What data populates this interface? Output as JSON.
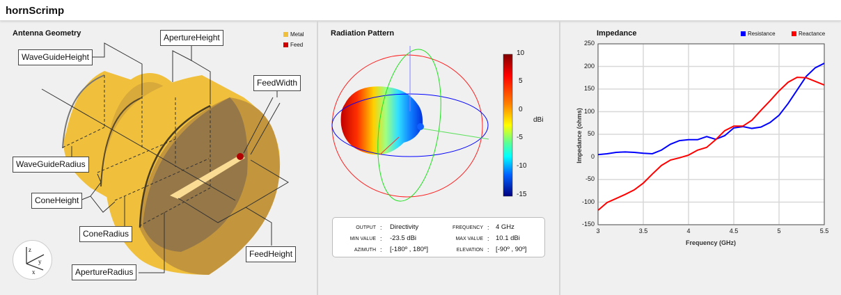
{
  "app": {
    "title": "hornScrimp"
  },
  "geometry": {
    "title": "Antenna Geometry",
    "legend": [
      {
        "label": "Metal",
        "color": "#f0c03c"
      },
      {
        "label": "Feed",
        "color": "#d00000"
      }
    ],
    "labels": {
      "waveguide_height": "WaveGuideHeight",
      "aperture_height": "ApertureHeight",
      "feed_width": "FeedWidth",
      "waveguide_radius": "WaveGuideRadius",
      "cone_height": "ConeHeight",
      "cone_radius": "ConeRadius",
      "feed_height": "FeedHeight",
      "aperture_radius": "ApertureRadius"
    },
    "axes": {
      "z": "z",
      "y": "y",
      "x": "x"
    }
  },
  "radiation": {
    "title": "Radiation Pattern",
    "colorbar": {
      "unit": "dBi",
      "ticks": [
        "10",
        "5",
        "0",
        "-5",
        "-10",
        "-15"
      ],
      "colormap": "jet"
    },
    "info": {
      "output_label": "OUTPUT",
      "output": "Directivity",
      "frequency_label": "FREQUENCY",
      "frequency": "4 GHz",
      "min_label": "MIN VALUE",
      "min": "-23.5 dBi",
      "max_label": "MAX VALUE",
      "max": "10.1 dBi",
      "azimuth_label": "AZIMUTH",
      "azimuth": "[-180º , 180º]",
      "elevation_label": "ELEVATION",
      "elevation": "[-90º , 90º]",
      "sep": ":"
    }
  },
  "chart_data": {
    "type": "line",
    "title": "Impedance",
    "xlabel": "Frequency (GHz)",
    "ylabel": "Impedance (ohms)",
    "xlim": [
      3,
      5.5
    ],
    "ylim": [
      -150,
      250
    ],
    "xticks": [
      "3",
      "3.5",
      "4",
      "4.5",
      "5",
      "5.5"
    ],
    "yticks": [
      "250",
      "200",
      "150",
      "100",
      "50",
      "0",
      "-50",
      "-100",
      "-150"
    ],
    "grid": true,
    "legend_position": "top-right",
    "x": [
      3.0,
      3.1,
      3.2,
      3.3,
      3.4,
      3.5,
      3.6,
      3.7,
      3.8,
      3.9,
      4.0,
      4.1,
      4.2,
      4.3,
      4.4,
      4.5,
      4.6,
      4.7,
      4.8,
      4.9,
      5.0,
      5.1,
      5.2,
      5.3,
      5.4,
      5.5
    ],
    "series": [
      {
        "name": "Resistance",
        "color": "#0000ff",
        "values": [
          5,
          7,
          10,
          11,
          10,
          8,
          7,
          15,
          28,
          36,
          38,
          38,
          45,
          39,
          47,
          64,
          67,
          63,
          66,
          76,
          92,
          118,
          148,
          178,
          197,
          207
        ]
      },
      {
        "name": "Reactance",
        "color": "#ff0000",
        "values": [
          -118,
          -101,
          -92,
          -83,
          -73,
          -58,
          -38,
          -19,
          -7,
          -2,
          4,
          15,
          21,
          38,
          58,
          68,
          68,
          81,
          103,
          124,
          146,
          165,
          176,
          175,
          167,
          159
        ]
      }
    ]
  }
}
